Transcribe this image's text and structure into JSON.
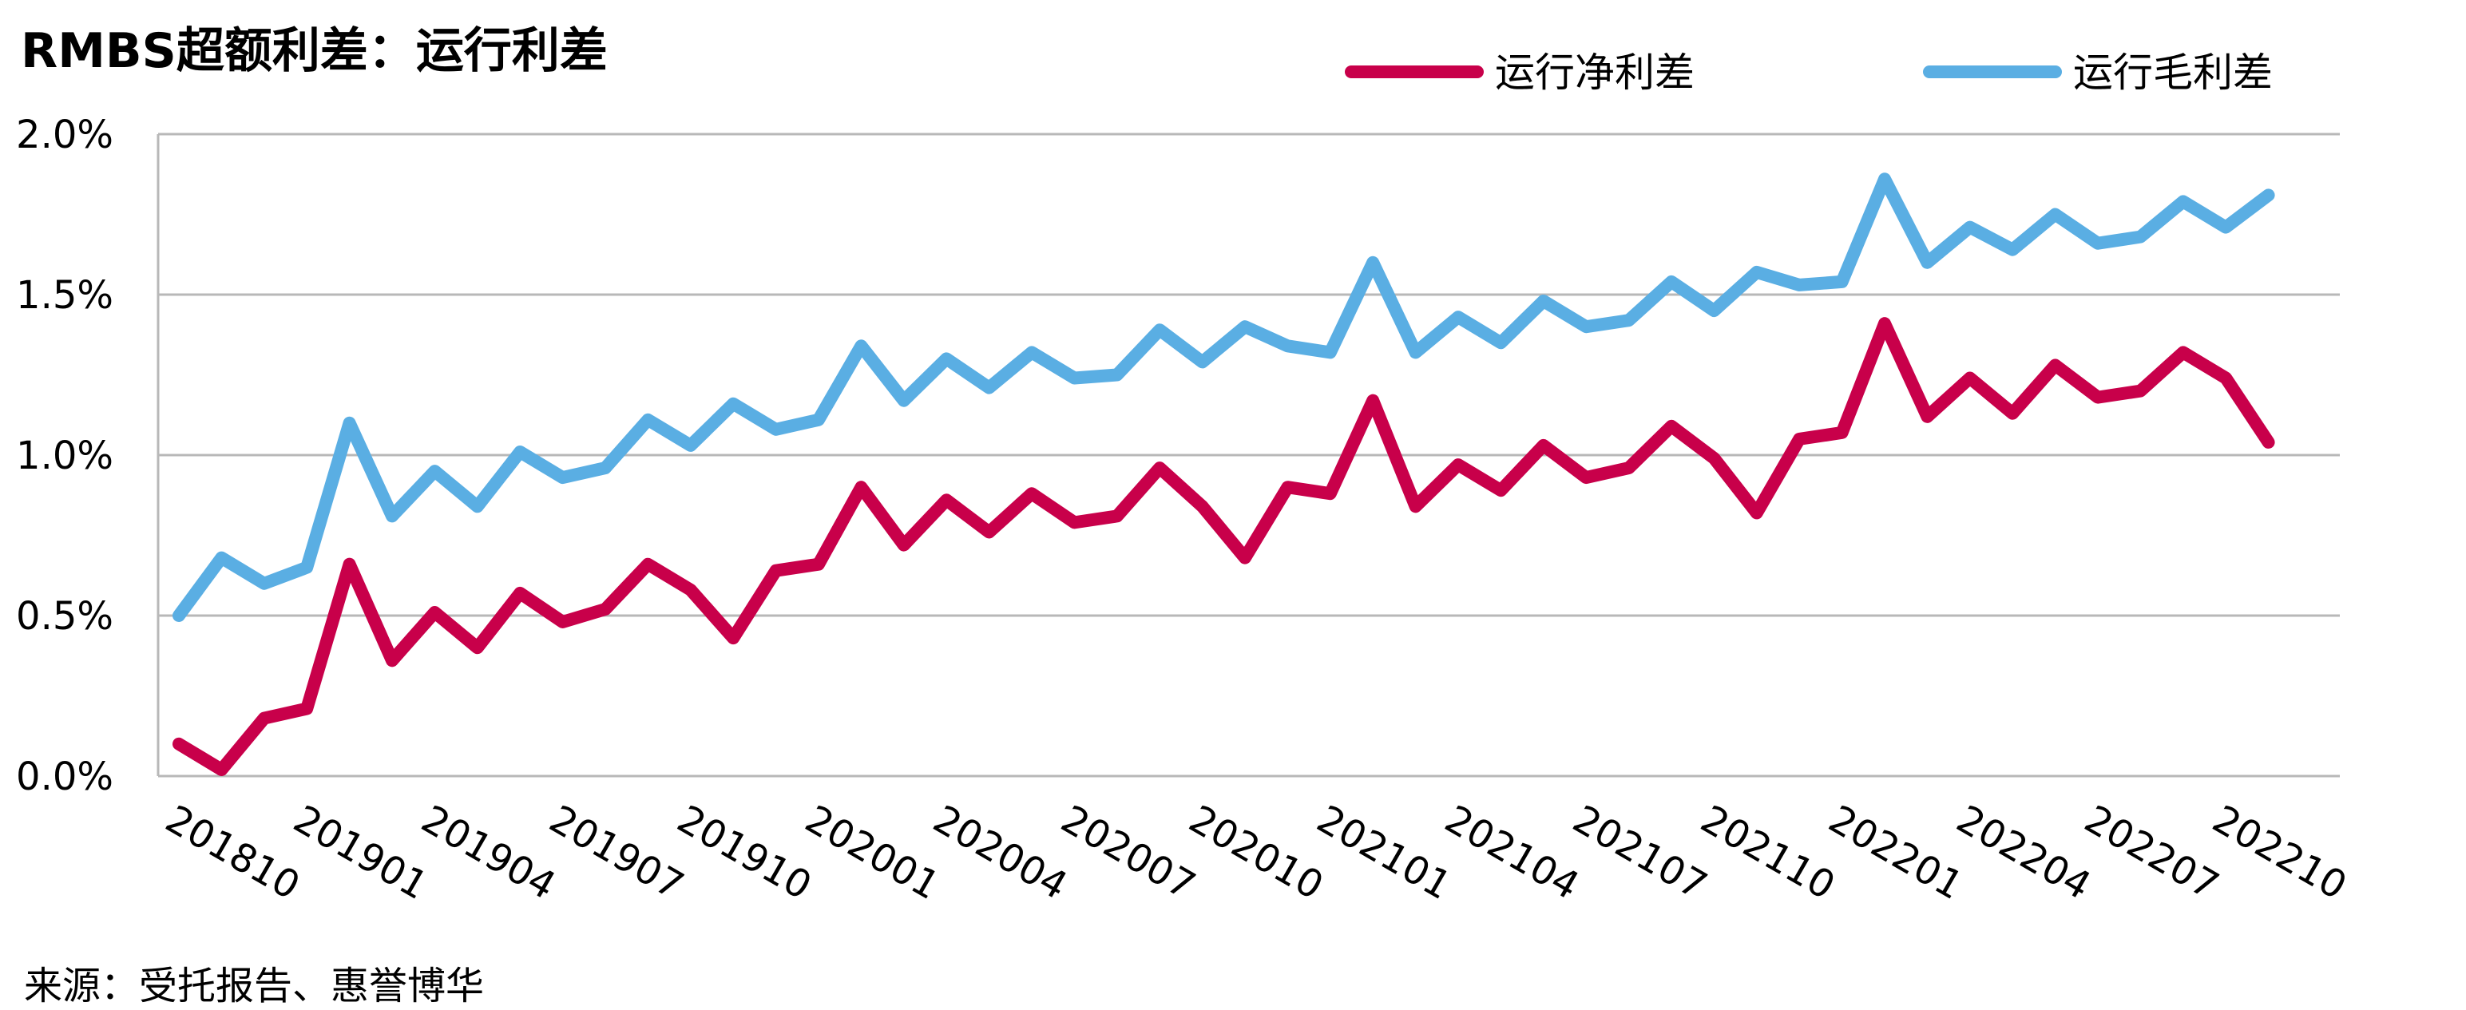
{
  "title": "RMBS超额利差：运行利差",
  "source": "来源：受托报告、惠誉博华",
  "chart_data": {
    "type": "line",
    "title": "RMBS超额利差：运行利差",
    "xlabel": "",
    "ylabel": "",
    "ylim": [
      0,
      2.0
    ],
    "y_ticks": [
      "0.0%",
      "0.5%",
      "1.0%",
      "1.5%",
      "2.0%"
    ],
    "y_tick_values": [
      0,
      0.5,
      1.0,
      1.5,
      2.0
    ],
    "x_tick_labels": [
      "201810",
      "201901",
      "201904",
      "201907",
      "201910",
      "202001",
      "202004",
      "202007",
      "202010",
      "202101",
      "202104",
      "202107",
      "202110",
      "202201",
      "202204",
      "202207",
      "202210"
    ],
    "grid": "horizontal",
    "legend_position": "top-right",
    "x": [
      "201810",
      "201811",
      "201812",
      "201901",
      "201902",
      "201903",
      "201904",
      "201905",
      "201906",
      "201907",
      "201908",
      "201909",
      "201910",
      "201911",
      "201912",
      "202001",
      "202002",
      "202003",
      "202004",
      "202005",
      "202006",
      "202007",
      "202008",
      "202009",
      "202010",
      "202011",
      "202012",
      "202101",
      "202102",
      "202103",
      "202104",
      "202105",
      "202106",
      "202107",
      "202108",
      "202109",
      "202110",
      "202111",
      "202112",
      "202201",
      "202202",
      "202203",
      "202204",
      "202205",
      "202206",
      "202207",
      "202208",
      "202209",
      "202210",
      "202211"
    ],
    "series": [
      {
        "name": "运行净利差",
        "color": "#c8004a",
        "values": [
          0.1,
          0.02,
          0.18,
          0.21,
          0.66,
          0.36,
          0.51,
          0.4,
          0.57,
          0.48,
          0.52,
          0.66,
          0.58,
          0.43,
          0.64,
          0.66,
          0.9,
          0.72,
          0.86,
          0.76,
          0.88,
          0.79,
          0.81,
          0.96,
          0.84,
          0.68,
          0.9,
          0.88,
          1.17,
          0.84,
          0.97,
          0.89,
          1.03,
          0.93,
          0.96,
          1.09,
          0.99,
          0.82,
          1.05,
          1.07,
          1.41,
          1.12,
          1.24,
          1.13,
          1.28,
          1.18,
          1.2,
          1.32,
          1.24,
          1.04
        ]
      },
      {
        "name": "运行毛利差",
        "color": "#5aaee3",
        "values": [
          0.5,
          0.68,
          0.6,
          0.65,
          1.1,
          0.81,
          0.95,
          0.84,
          1.01,
          0.93,
          0.96,
          1.11,
          1.03,
          1.16,
          1.08,
          1.11,
          1.34,
          1.17,
          1.3,
          1.21,
          1.32,
          1.24,
          1.25,
          1.39,
          1.29,
          1.4,
          1.34,
          1.32,
          1.6,
          1.32,
          1.43,
          1.35,
          1.48,
          1.4,
          1.42,
          1.54,
          1.45,
          1.57,
          1.53,
          1.54,
          1.86,
          1.6,
          1.71,
          1.64,
          1.75,
          1.66,
          1.68,
          1.79,
          1.71,
          1.81
        ]
      }
    ]
  }
}
